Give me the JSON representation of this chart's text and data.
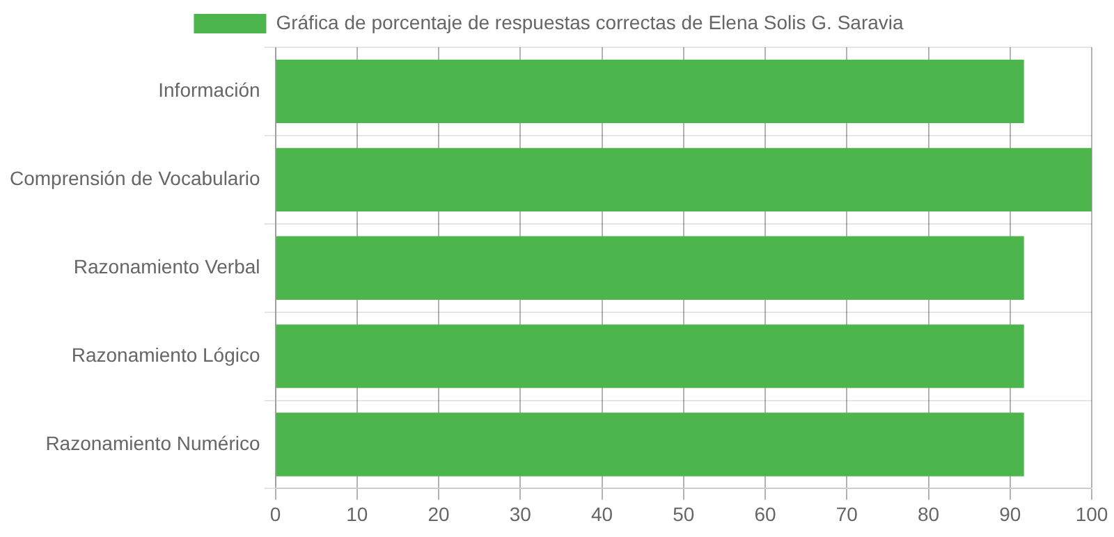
{
  "chart_data": {
    "type": "bar",
    "orientation": "horizontal",
    "categories": [
      "Información",
      "Comprensión de Vocabulario",
      "Razonamiento Verbal",
      "Razonamiento Lógico",
      "Razonamiento Numérico"
    ],
    "series": [
      {
        "name": "Gráfica de porcentaje de respuestas correctas de Elena Solis G. Saravia",
        "color": "#4cb54c",
        "values": [
          91.7,
          100,
          91.7,
          91.7,
          91.7
        ]
      }
    ],
    "xlim": [
      0,
      100
    ],
    "xticks": [
      0,
      10,
      20,
      30,
      40,
      50,
      60,
      70,
      80,
      90,
      100
    ],
    "grid": true,
    "legend": "top"
  }
}
